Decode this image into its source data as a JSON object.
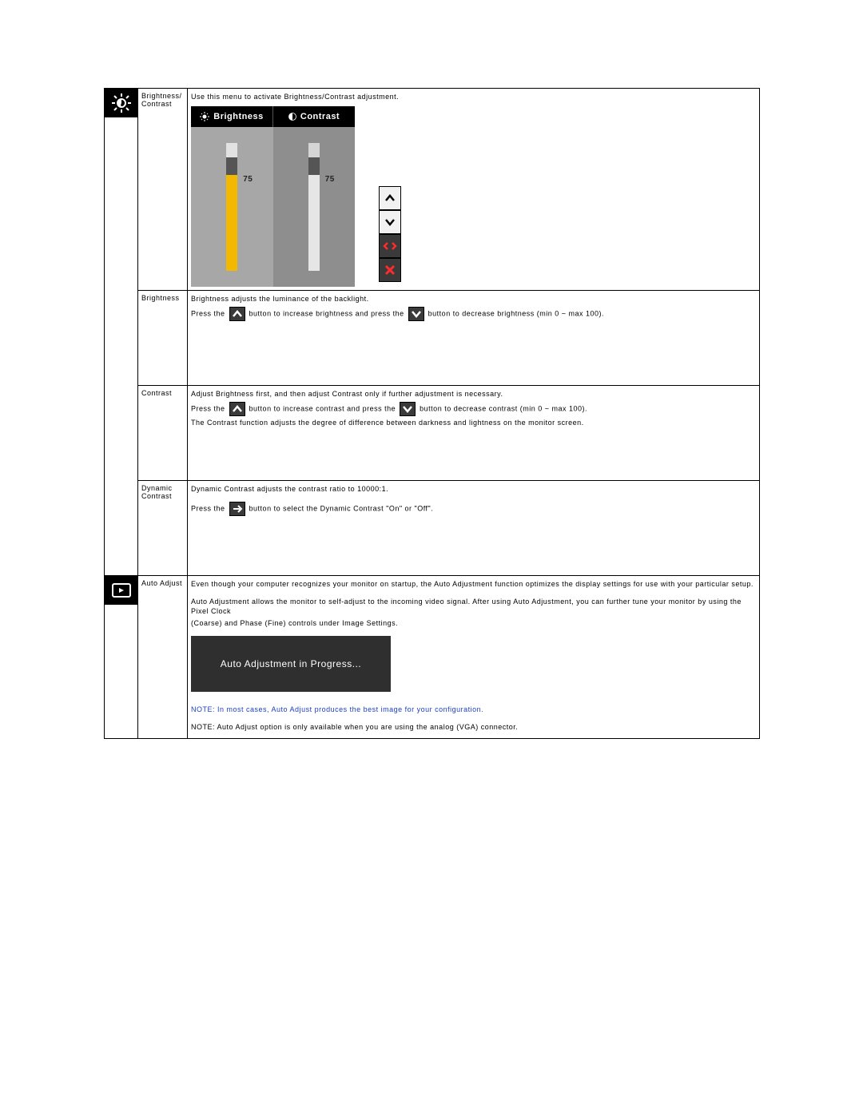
{
  "row1": {
    "label": "Brightness/ Contrast",
    "desc": "Use this menu to activate Brightness/Contrast adjustment.",
    "osd": {
      "brightness_label": "Brightness",
      "contrast_label": "Contrast",
      "brightness": {
        "value": 75,
        "fill_color": "#f3b900",
        "cap_color": "#555555",
        "track_color": "#e2e2e2"
      },
      "contrast": {
        "value": 75,
        "fill_color": "#e6e6e6",
        "cap_color": "#555555",
        "track_color": "#d5d5d5"
      },
      "panel_left_bg": "#a7a7a7",
      "panel_right_bg": "#8e8e8e",
      "nav": {
        "up_bg": "#f1f1f1",
        "up_fg": "#000000",
        "down_bg": "#f1f1f1",
        "down_fg": "#000000",
        "lr_bg": "#3a3a3a",
        "lr_fg": "#ff2b2b",
        "x_bg": "#3a3a3a",
        "x_fg": "#ff2b2b"
      }
    }
  },
  "row2": {
    "label": "Brightness",
    "line1": "Brightness adjusts the luminance of the backlight.",
    "press_prefix": "Press the ",
    "mid": " button to increase brightness and press the ",
    "suffix": " button to decrease brightness (min 0 ~ max 100)."
  },
  "row3": {
    "label": "Contrast",
    "line1": "Adjust Brightness first, and then adjust Contrast only if further adjustment is necessary.",
    "press_prefix": "Press the ",
    "mid": " button to increase contrast and press the ",
    "suffix": " button to decrease contrast (min 0 ~ max 100).",
    "line3": "The Contrast function adjusts the degree of difference between darkness and lightness on the monitor screen."
  },
  "row4": {
    "label": "Dynamic Contrast",
    "line1": "Dynamic Contrast adjusts the contrast ratio to 10000:1.",
    "press_prefix": "Press the ",
    "suffix": " button to select the Dynamic Contrast \"On\" or \"Off\"."
  },
  "row5": {
    "label": "Auto Adjust",
    "p1": "Even though your computer recognizes your monitor on startup, the Auto Adjustment function optimizes the display settings for use with your particular setup.",
    "p2": "Auto Adjustment allows the monitor to self-adjust to the incoming video signal. After using Auto Adjustment, you can further tune your monitor by using the Pixel Clock",
    "p3": "(Coarse) and Phase (Fine) controls under Image Settings.",
    "progress_text": "Auto Adjustment in Progress...",
    "note1_prefix": "NOTE:",
    "note1": " In most cases, Auto Adjust produces the best image for your configuration.",
    "note2_prefix": "NOTE:",
    "note2": " Auto Adjust option is only available when you are using the analog (VGA) connector."
  },
  "colors": {
    "bg": "#ffffff",
    "border": "#000000",
    "note_blue": "#1a3ec9",
    "inline_btn_bg": "#3a3a3a",
    "inline_btn_fg": "#ffffff",
    "progress_bg": "#2f2f2f",
    "progress_fg": "#ffffff"
  }
}
